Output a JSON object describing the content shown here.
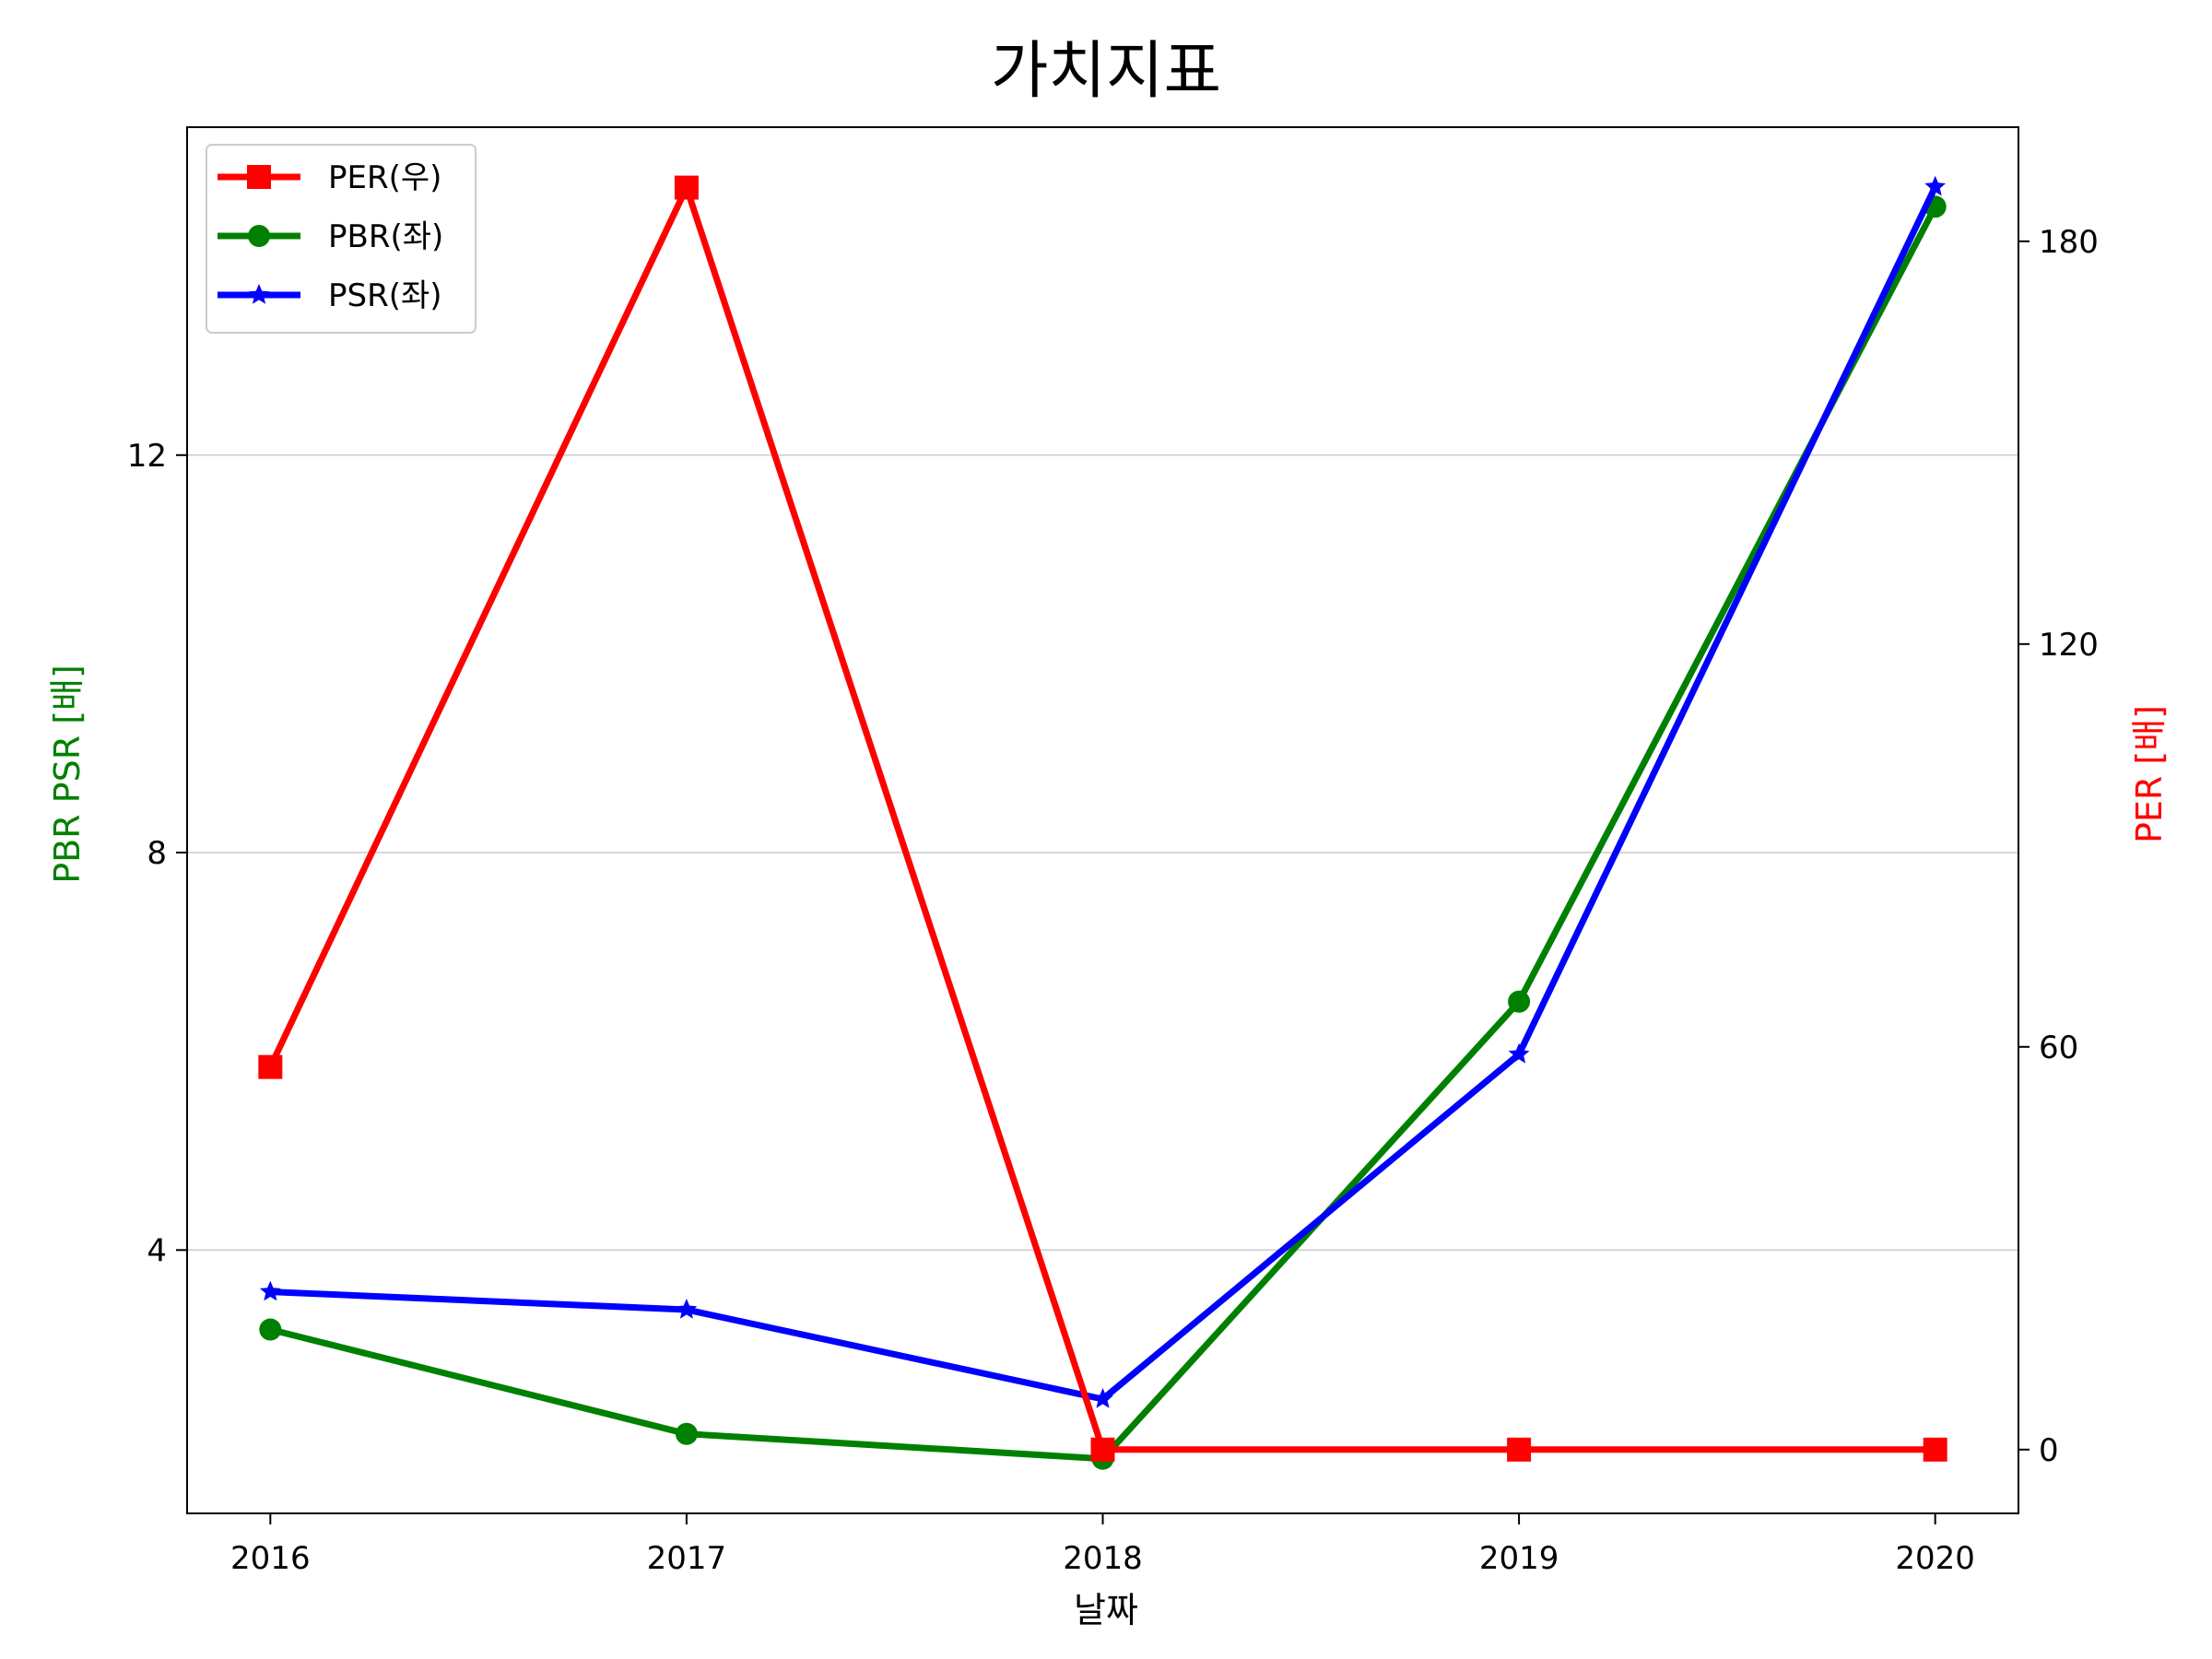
{
  "chart_data": {
    "type": "line",
    "title": "가치지표",
    "xlabel": "날짜",
    "ylabel_left": "PBR PSR [배]",
    "ylabel_right": "PER [배]",
    "categories": [
      "2016",
      "2017",
      "2018",
      "2019",
      "2020"
    ],
    "y_left": {
      "ticks": [
        "4",
        "8",
        "12"
      ],
      "tick_values": [
        4,
        8,
        12
      ],
      "ylim": [
        1.35,
        15.3
      ],
      "color": "#008000"
    },
    "y_right": {
      "ticks": [
        "0",
        "60",
        "120",
        "180"
      ],
      "tick_values": [
        0,
        60,
        120,
        180
      ],
      "ylim": [
        -9.5,
        197
      ],
      "color": "#ff0000"
    },
    "grid": "horizontal",
    "legend_position": "upper-left",
    "series": [
      {
        "name": "PER(우)",
        "axis": "right",
        "color": "#ff0000",
        "marker": "square",
        "values": [
          57,
          188,
          0,
          0,
          0
        ]
      },
      {
        "name": "PBR(좌)",
        "axis": "left",
        "color": "#008000",
        "marker": "circle",
        "values": [
          3.2,
          2.15,
          1.9,
          6.5,
          14.5
        ]
      },
      {
        "name": "PSR(좌)",
        "axis": "left",
        "color": "#0000ff",
        "marker": "star",
        "values": [
          3.58,
          3.4,
          2.5,
          5.97,
          14.7
        ]
      }
    ]
  }
}
